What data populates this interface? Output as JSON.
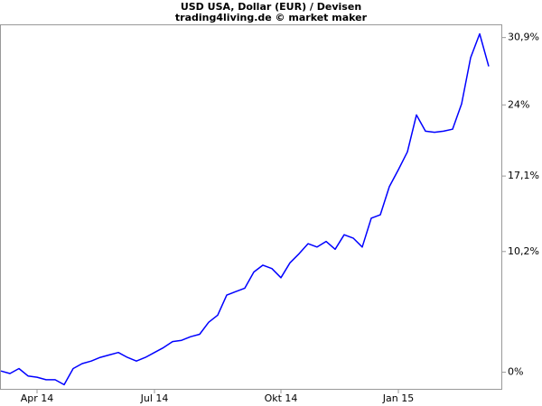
{
  "chart_data": {
    "type": "line",
    "title": "USD USA, Dollar (EUR) / Devisen",
    "subtitle": "trading4living.de © market maker",
    "x": [
      "2014-03",
      "2014-03",
      "2014-03",
      "2014-03",
      "2014-04",
      "2014-04",
      "2014-04",
      "2014-04",
      "2014-05",
      "2014-05",
      "2014-05",
      "2014-05",
      "2014-05",
      "2014-06",
      "2014-06",
      "2014-06",
      "2014-06",
      "2014-07",
      "2014-07",
      "2014-07",
      "2014-07",
      "2014-07",
      "2014-08",
      "2014-08",
      "2014-08",
      "2014-08",
      "2014-09",
      "2014-09",
      "2014-09",
      "2014-09",
      "2014-09",
      "2014-10",
      "2014-10",
      "2014-10",
      "2014-10",
      "2014-11",
      "2014-11",
      "2014-11",
      "2014-11",
      "2014-11",
      "2014-12",
      "2014-12",
      "2014-12",
      "2014-12",
      "2015-01",
      "2015-01",
      "2015-01",
      "2015-01",
      "2015-01",
      "2015-02",
      "2015-02",
      "2015-02",
      "2015-02",
      "2015-03",
      "2015-03"
    ],
    "series": [
      {
        "color": "#0000ff",
        "values": [
          0.1,
          -0.1,
          0.3,
          -0.3,
          -0.4,
          -0.6,
          -0.6,
          -1.0,
          0.3,
          0.7,
          0.9,
          1.2,
          1.4,
          1.6,
          1.2,
          0.9,
          1.2,
          1.6,
          2.0,
          2.5,
          2.6,
          2.9,
          3.1,
          4.1,
          4.7,
          6.4,
          6.7,
          7.0,
          8.4,
          9.0,
          8.7,
          7.9,
          9.2,
          10.0,
          10.9,
          10.6,
          11.1,
          10.4,
          11.7,
          11.4,
          10.6,
          13.2,
          13.5,
          16.1,
          17.7,
          19.4,
          23.0,
          21.4,
          21.3,
          21.4,
          21.6,
          24.1,
          28.8,
          31.3,
          27.9
        ]
      }
    ],
    "xticks": [
      {
        "value": "2014-04",
        "label": "Apr 14"
      },
      {
        "value": "2014-07",
        "label": "Jul 14"
      },
      {
        "value": "2014-10",
        "label": "Okt 14"
      },
      {
        "value": "2015-01",
        "label": "Jan 15"
      }
    ],
    "ylim": [
      -1.4,
      32.3
    ],
    "yticks": [
      {
        "value": 0,
        "label": "0%"
      },
      {
        "value": 10.2,
        "label": "10,2%"
      },
      {
        "value": 17.1,
        "label": "17,1%"
      },
      {
        "value": 24,
        "label": "24%"
      },
      {
        "value": 30.9,
        "label": "30,9%"
      }
    ],
    "ylog": true,
    "yaxis_side": "right"
  }
}
